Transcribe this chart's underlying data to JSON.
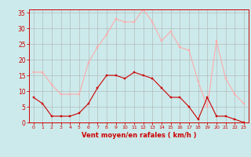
{
  "title": "",
  "xlabel": "Vent moyen/en rafales ( km/h )",
  "hours": [
    0,
    1,
    2,
    3,
    4,
    5,
    6,
    7,
    8,
    9,
    10,
    11,
    12,
    13,
    14,
    15,
    16,
    17,
    18,
    19,
    20,
    21,
    22,
    23
  ],
  "wind_avg": [
    8,
    6,
    2,
    2,
    2,
    3,
    6,
    11,
    15,
    15,
    14,
    16,
    15,
    14,
    11,
    8,
    8,
    5,
    1,
    8,
    2,
    2,
    1,
    0
  ],
  "wind_gust": [
    16,
    16,
    12,
    9,
    9,
    9,
    19,
    24,
    28,
    33,
    32,
    32,
    36,
    32,
    26,
    29,
    24,
    23,
    13,
    5,
    26,
    14,
    9,
    6
  ],
  "avg_color": "#cc0000",
  "gust_color": "#ffaaaa",
  "bg_color": "#cceaeb",
  "grid_color": "#b0b0b0",
  "axis_color": "#cc0000",
  "tick_color": "#cc0000",
  "ylim": [
    0,
    36
  ],
  "yticks": [
    0,
    5,
    10,
    15,
    20,
    25,
    30,
    35
  ],
  "xlim": [
    -0.5,
    23.5
  ]
}
